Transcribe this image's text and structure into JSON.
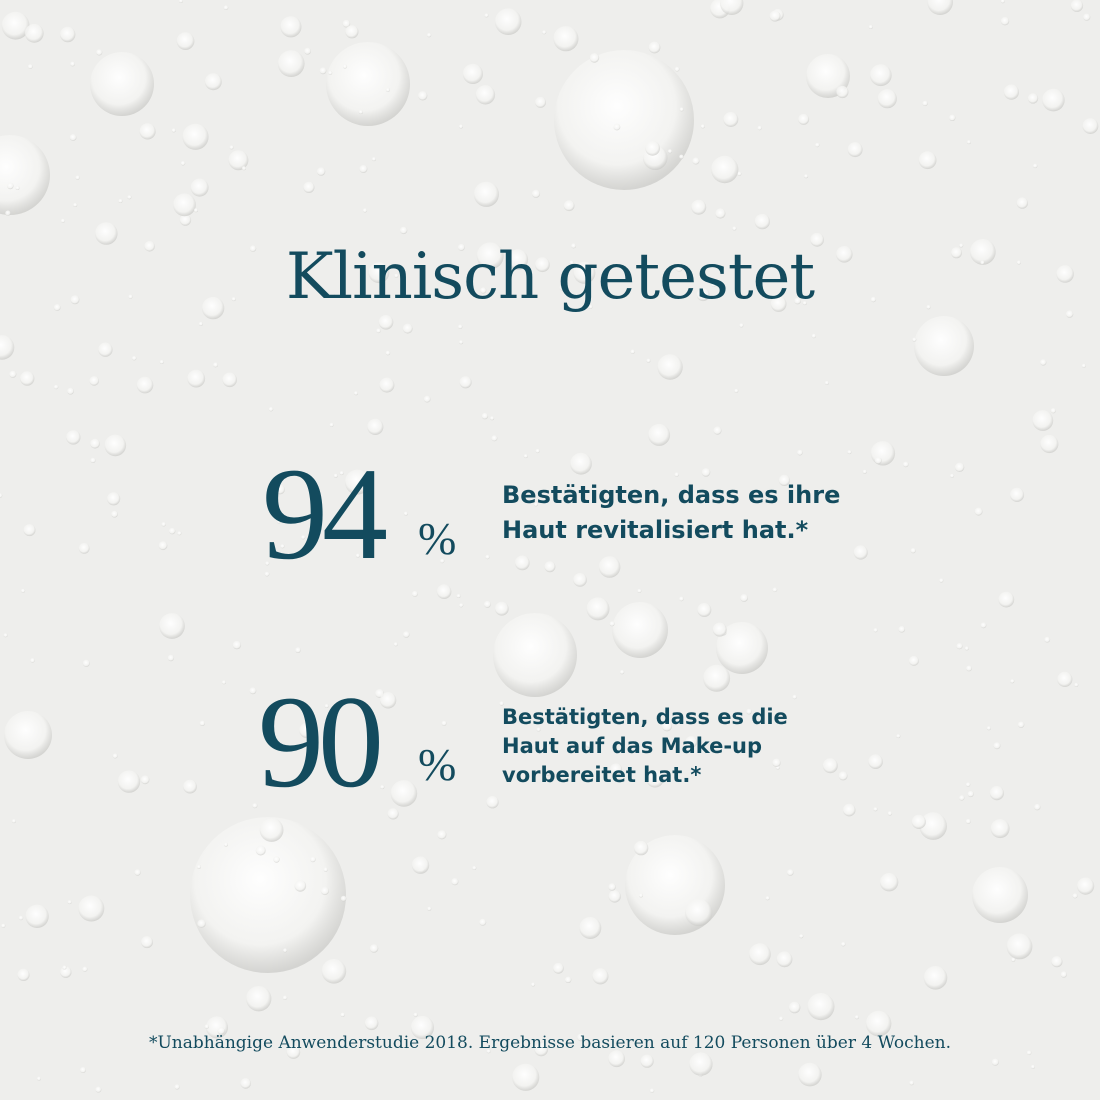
{
  "title": "Klinisch getestet",
  "stats": [
    {
      "number": 94,
      "unit": "%",
      "lines": [
        "Bestätigten, dass es ihre",
        "Haut revitalisiert hat.*"
      ]
    },
    {
      "number": 90,
      "unit": "%",
      "lines": [
        "Bestätigten, dass es die",
        "Haut auf das Make-up",
        "vorbereitet hat.*"
      ]
    }
  ],
  "footnote": "*Unabhängige Anwenderstudie 2018. Ergebnisse basieren auf 120 Personen über 4 Wochen."
}
